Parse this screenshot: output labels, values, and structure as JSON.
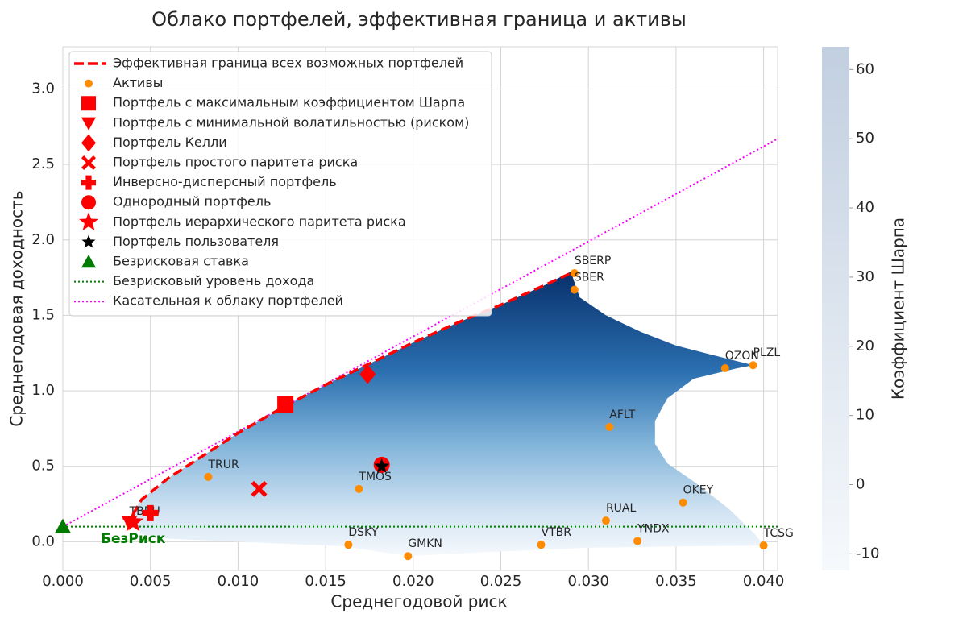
{
  "chart_data": {
    "type": "scatter",
    "title": "Облако портфелей, эффективная граница и активы",
    "xlabel": "Среднегодовой риск",
    "ylabel": "Среднегодовая доходность",
    "xlim": [
      0,
      0.0408
    ],
    "ylim": [
      -0.19,
      3.28
    ],
    "xticks": [
      {
        "value": 0,
        "label": "0.000"
      },
      0.005,
      {
        "value": 0.01,
        "label": "0.010"
      },
      0.015,
      {
        "value": 0.02,
        "label": "0.020"
      },
      0.025,
      {
        "value": 0.03,
        "label": "0.030"
      },
      0.035,
      {
        "value": 0.04,
        "label": "0.040"
      }
    ],
    "yticks": [
      {
        "value": 0,
        "label": "0.0"
      },
      0.5,
      {
        "value": 1,
        "label": "1.0"
      },
      1.5,
      {
        "value": 2,
        "label": "2.0"
      },
      2.5,
      {
        "value": 3,
        "label": "3.0"
      }
    ],
    "grid": true,
    "legend": "upper left",
    "cloud": {
      "x": [
        0.0038,
        0.0045,
        0.006,
        0.008,
        0.01,
        0.0127,
        0.015,
        0.0175,
        0.02,
        0.0225,
        0.025,
        0.0275,
        0.029,
        0.0292,
        0.0295,
        0.031,
        0.033,
        0.035,
        0.037,
        0.0394,
        0.0385,
        0.036,
        0.0345,
        0.0338,
        0.0338,
        0.0345,
        0.036,
        0.038,
        0.0395,
        0.04,
        0.036,
        0.03,
        0.024,
        0.0197,
        0.016,
        0.01,
        0.006,
        0.0045
      ],
      "y": [
        0.16,
        0.28,
        0.42,
        0.57,
        0.72,
        0.9,
        1.04,
        1.18,
        1.32,
        1.45,
        1.57,
        1.7,
        1.79,
        1.72,
        1.62,
        1.5,
        1.39,
        1.3,
        1.24,
        1.17,
        1.15,
        1.08,
        0.95,
        0.8,
        0.65,
        0.52,
        0.4,
        0.22,
        0.05,
        -0.025,
        -0.03,
        -0.04,
        -0.07,
        -0.095,
        -0.03,
        0,
        0.02,
        0.05
      ]
    },
    "frontier": {
      "name": "Эффективная граница всех возможных портфелей",
      "color": "#ff0000",
      "x": [
        0.004,
        0.0045,
        0.006,
        0.008,
        0.01,
        0.0127,
        0.015,
        0.0175,
        0.02,
        0.0225,
        0.025,
        0.0275,
        0.029
      ],
      "y": [
        0.18,
        0.28,
        0.42,
        0.57,
        0.72,
        0.9,
        1.04,
        1.18,
        1.32,
        1.45,
        1.57,
        1.7,
        1.78
      ]
    },
    "assets": {
      "name": "Активы",
      "color": "#ff8c00",
      "labels": [
        "SBERP",
        "SBER",
        "PLZL",
        "OZON",
        "AFLT",
        "TRUR",
        "TMOS",
        "OKEY",
        "RUAL",
        "YNDX",
        "TCSG",
        "DSKY",
        "GMKN",
        "VTBR",
        "TBRU"
      ],
      "x": [
        0.0292,
        0.0292,
        0.0394,
        0.0378,
        0.0312,
        0.0083,
        0.0169,
        0.0354,
        0.031,
        0.0328,
        0.04,
        0.0163,
        0.0197,
        0.0273,
        0.0038
      ],
      "y": [
        1.78,
        1.67,
        1.17,
        1.15,
        0.76,
        0.43,
        0.35,
        0.26,
        0.14,
        0.005,
        -0.025,
        -0.02,
        -0.095,
        -0.02,
        0.12
      ]
    },
    "portfolios": [
      {
        "name": "Портфель с максимальным коэффициентом Шарпа",
        "color": "#ff0000",
        "marker": "square",
        "x": 0.0127,
        "y": 0.91
      },
      {
        "name": "Портфель с минимальной волатильностью (риском)",
        "color": "#ff0000",
        "marker": "triangle-down",
        "x": 0.0038,
        "y": 0.13
      },
      {
        "name": "Портфель Келли",
        "color": "#ff0000",
        "marker": "diamond",
        "x": 0.0174,
        "y": 1.11
      },
      {
        "name": "Портфель простого паритета риска",
        "color": "#ff0000",
        "marker": "x",
        "x": 0.0112,
        "y": 0.35
      },
      {
        "name": "Инверсно-дисперсный портфель",
        "color": "#ff0000",
        "marker": "plus",
        "x": 0.005,
        "y": 0.19
      },
      {
        "name": "Однородный портфель",
        "color": "#ff0000",
        "marker": "circle",
        "x": 0.0182,
        "y": 0.51
      },
      {
        "name": "Портфель иерархического паритета риска",
        "color": "#ff0000",
        "marker": "star",
        "x": 0.004,
        "y": 0.13
      },
      {
        "name": "Портфель пользователя",
        "color": "#000000",
        "marker": "star-small",
        "x": 0.0182,
        "y": 0.5
      },
      {
        "name": "Безрисковая ставка",
        "color": "#007a00",
        "marker": "triangle-up",
        "x": 0,
        "y": 0.1
      }
    ],
    "riskfree_line": {
      "name": "Безрисковый уровень дохода",
      "color": "#008000",
      "y": 0.1
    },
    "tangent": {
      "name": "Касательная к облаку портфелей",
      "color": "#ff00ff",
      "x": [
        0,
        0.0408
      ],
      "y": [
        0.1,
        2.67
      ]
    },
    "riskfree_label": "БезРиск",
    "colorbar": {
      "label": "Коэффициент Шарпа",
      "lim": [
        -12.4,
        63.3
      ],
      "ticks": [
        -10,
        0,
        10,
        20,
        30,
        40,
        50,
        60
      ]
    }
  }
}
